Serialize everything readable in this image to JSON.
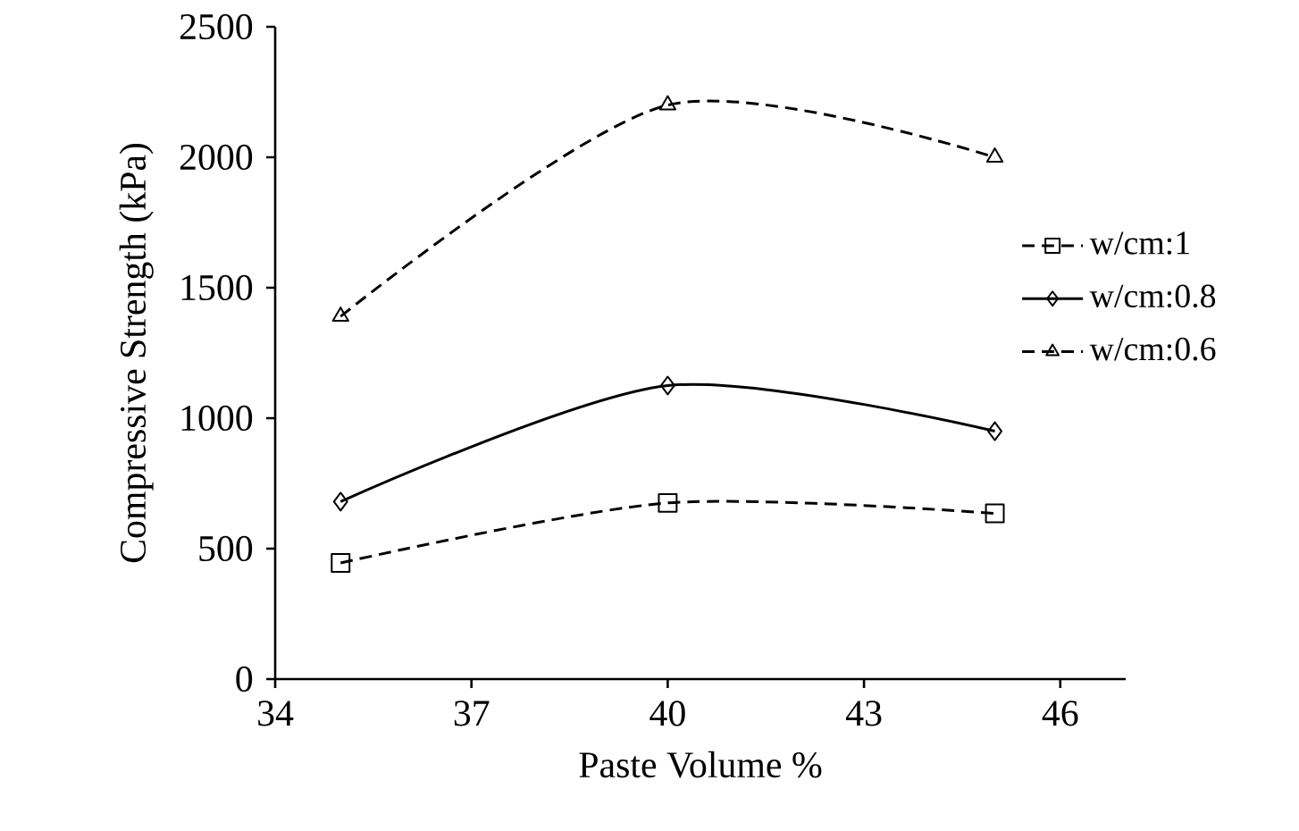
{
  "chart_data": {
    "type": "line",
    "xlabel": "Paste Volume %",
    "ylabel": "Compressive Strength (kPa)",
    "x": [
      35,
      40,
      45
    ],
    "series": [
      {
        "name": "w/cm:1",
        "color": "#000000",
        "values": [
          445,
          675,
          635
        ],
        "marker": "square",
        "line_style": "dashed"
      },
      {
        "name": "w/cm:0.8",
        "color": "#000000",
        "values": [
          680,
          1125,
          950
        ],
        "marker": "diamond",
        "line_style": "solid"
      },
      {
        "name": "w/cm:0.6",
        "color": "#000000",
        "values": [
          1390,
          2200,
          2000
        ],
        "marker": "triangle",
        "line_style": "dashed"
      }
    ],
    "xlim": [
      34,
      47
    ],
    "xticks": [
      34,
      37,
      40,
      43,
      46
    ],
    "ylim": [
      0,
      2500
    ],
    "yticks": [
      0,
      500,
      1000,
      1500,
      2000,
      2500
    ],
    "grid": false,
    "legend": "right"
  }
}
